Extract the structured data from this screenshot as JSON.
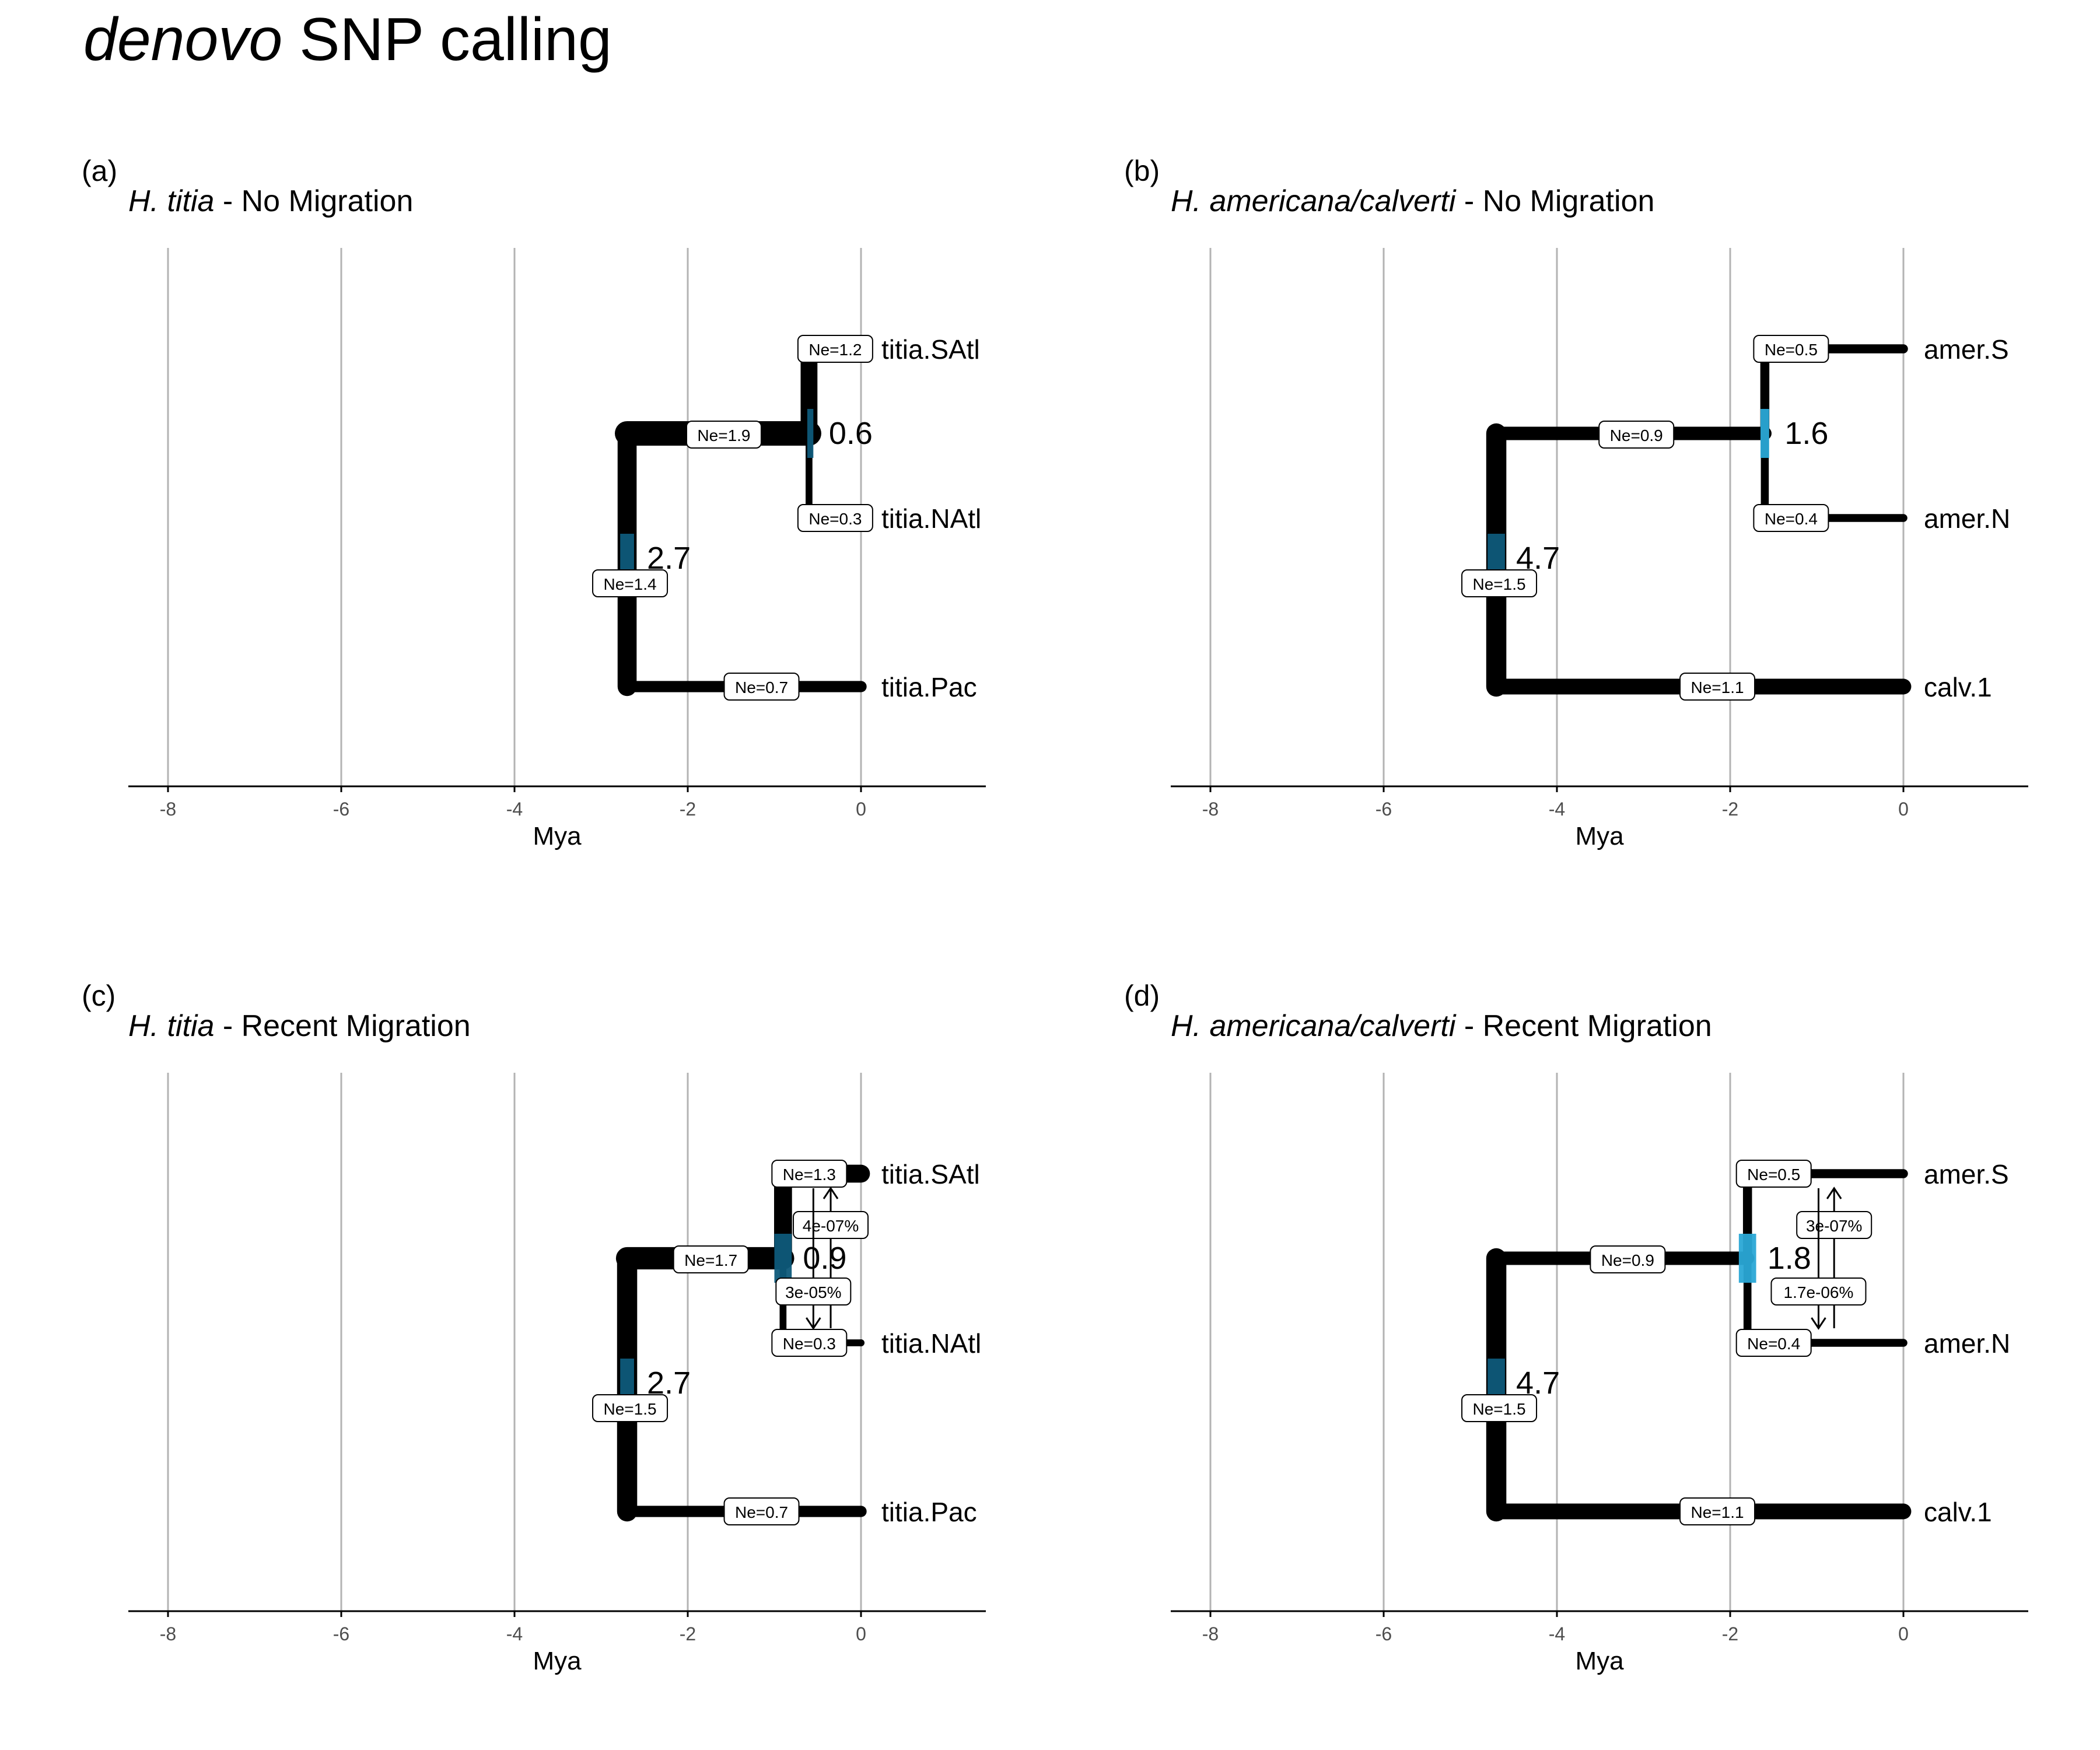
{
  "figure": {
    "title_italic": "denovo",
    "title_rest": " SNP calling"
  },
  "chart_data": [
    {
      "type": "tree",
      "panel_label": "(a)",
      "title_species": "H. titia",
      "title_suffix": " - No Migration",
      "xlabel": "Mya",
      "xticks": [
        "-8",
        "-6",
        "-4",
        "-2",
        "0"
      ],
      "xlim": [
        -8.45,
        1.45
      ],
      "root_time": -2.7,
      "tips": [
        {
          "name": "titia.SAtl",
          "y": 1,
          "ne": 1.2,
          "ne_label": "Ne=1.2"
        },
        {
          "name": "titia.NAtl",
          "y": 2,
          "ne": 0.3,
          "ne_label": "Ne=0.3"
        },
        {
          "name": "titia.Pac",
          "y": 3,
          "ne": 0.7,
          "ne_label": "Ne=0.7"
        }
      ],
      "internal": [
        {
          "time": -0.6,
          "time_label": "0.6",
          "ne": 1.9,
          "ne_label": "Ne=1.9",
          "children": [
            1,
            2
          ],
          "ci": [
            -0.62,
            -0.55
          ]
        },
        {
          "time": -2.7,
          "time_label": "2.7",
          "ne": 1.4,
          "ne_label": "Ne=1.4",
          "children": [
            "n0",
            3
          ],
          "ci": [
            -2.78,
            -2.62
          ]
        }
      ],
      "migration": []
    },
    {
      "type": "tree",
      "panel_label": "(b)",
      "title_species": "H. americana/calverti",
      "title_suffix": " - No Migration",
      "xlabel": "Mya",
      "xticks": [
        "-8",
        "-6",
        "-4",
        "-2",
        "0"
      ],
      "xlim": [
        -8.45,
        1.45
      ],
      "root_time": -4.7,
      "tips": [
        {
          "name": "amer.S",
          "y": 1,
          "ne": 0.5,
          "ne_label": "Ne=0.5"
        },
        {
          "name": "amer.N",
          "y": 2,
          "ne": 0.4,
          "ne_label": "Ne=0.4"
        },
        {
          "name": "calv.1",
          "y": 3,
          "ne": 1.1,
          "ne_label": "Ne=1.1"
        }
      ],
      "internal": [
        {
          "time": -1.6,
          "time_label": "1.6",
          "ne": 0.9,
          "ne_label": "Ne=0.9",
          "children": [
            1,
            2
          ],
          "ci": [
            -1.65,
            -1.55
          ]
        },
        {
          "time": -4.7,
          "time_label": "4.7",
          "ne": 1.5,
          "ne_label": "Ne=1.5",
          "children": [
            "n0",
            3
          ],
          "ci": [
            -4.8,
            -4.6
          ]
        }
      ],
      "migration": []
    },
    {
      "type": "tree",
      "panel_label": "(c)",
      "title_species": "H. titia",
      "title_suffix": " - Recent Migration",
      "xlabel": "Mya",
      "xticks": [
        "-8",
        "-6",
        "-4",
        "-2",
        "0"
      ],
      "xlim": [
        -8.45,
        1.45
      ],
      "root_time": -2.7,
      "tips": [
        {
          "name": "titia.SAtl",
          "y": 1,
          "ne": 1.3,
          "ne_label": "Ne=1.3"
        },
        {
          "name": "titia.NAtl",
          "y": 2,
          "ne": 0.3,
          "ne_label": "Ne=0.3"
        },
        {
          "name": "titia.Pac",
          "y": 3,
          "ne": 0.7,
          "ne_label": "Ne=0.7"
        }
      ],
      "internal": [
        {
          "time": -0.9,
          "time_label": "0.9",
          "ne": 1.7,
          "ne_label": "Ne=1.7",
          "children": [
            1,
            2
          ],
          "ci": [
            -1.0,
            -0.8
          ]
        },
        {
          "time": -2.7,
          "time_label": "2.7",
          "ne": 1.5,
          "ne_label": "Ne=1.5",
          "children": [
            "n0",
            3
          ],
          "ci": [
            -2.78,
            -2.62
          ]
        }
      ],
      "migration": [
        {
          "from": "titia.NAtl",
          "to": "titia.SAtl",
          "label": "4e-07%",
          "time": -0.35
        },
        {
          "from": "titia.SAtl",
          "to": "titia.NAtl",
          "label": "3e-05%",
          "time": -0.55
        }
      ]
    },
    {
      "type": "tree",
      "panel_label": "(d)",
      "title_species": "H. americana/calverti",
      "title_suffix": " - Recent Migration",
      "xlabel": "Mya",
      "xticks": [
        "-8",
        "-6",
        "-4",
        "-2",
        "0"
      ],
      "xlim": [
        -8.45,
        1.45
      ],
      "root_time": -4.7,
      "tips": [
        {
          "name": "amer.S",
          "y": 1,
          "ne": 0.5,
          "ne_label": "Ne=0.5"
        },
        {
          "name": "amer.N",
          "y": 2,
          "ne": 0.4,
          "ne_label": "Ne=0.4"
        },
        {
          "name": "calv.1",
          "y": 3,
          "ne": 1.1,
          "ne_label": "Ne=1.1"
        }
      ],
      "internal": [
        {
          "time": -1.8,
          "time_label": "1.8",
          "ne": 0.9,
          "ne_label": "Ne=0.9",
          "children": [
            1,
            2
          ],
          "ci": [
            -1.9,
            -1.7
          ]
        },
        {
          "time": -4.7,
          "time_label": "4.7",
          "ne": 1.5,
          "ne_label": "Ne=1.5",
          "children": [
            "n0",
            3
          ],
          "ci": [
            -4.8,
            -4.6
          ]
        }
      ],
      "migration": [
        {
          "from": "amer.N",
          "to": "amer.S",
          "label": "3e-07%",
          "time": -0.8
        },
        {
          "from": "amer.S",
          "to": "amer.N",
          "label": "1.7e-06%",
          "time": -0.98
        }
      ]
    }
  ],
  "colors": {
    "branch": "#000000",
    "ci_dark": "#0e5a7a",
    "ci_light": "#2aa8d6",
    "grid": "#b3b3b3",
    "axis": "#000000"
  }
}
